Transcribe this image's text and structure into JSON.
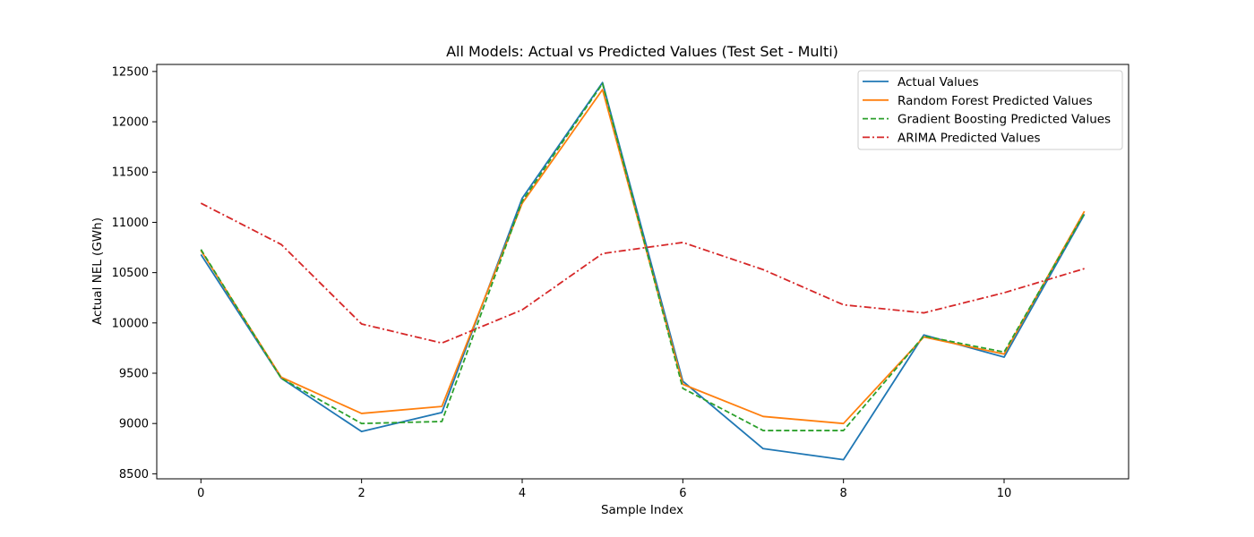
{
  "chart_data": {
    "type": "line",
    "title": "All Models: Actual vs Predicted Values (Test Set - Multi)",
    "xlabel": "Sample Index",
    "ylabel": "Actual NEL (GWh)",
    "x": [
      0,
      1,
      2,
      3,
      4,
      5,
      6,
      7,
      8,
      9,
      10,
      11
    ],
    "xlim": [
      -0.55,
      11.55
    ],
    "ylim": [
      8450,
      12570
    ],
    "xticks": [
      0,
      2,
      4,
      6,
      8,
      10
    ],
    "yticks": [
      8500,
      9000,
      9500,
      10000,
      10500,
      11000,
      11500,
      12000,
      12500
    ],
    "grid": false,
    "legend_position": "top-right",
    "series": [
      {
        "name": "Actual Values",
        "color": "#1f77b4",
        "style": "solid",
        "values": [
          10680,
          9450,
          8920,
          9110,
          11240,
          12390,
          9420,
          8750,
          8640,
          9880,
          9660,
          11080
        ]
      },
      {
        "name": "Random Forest Predicted Values",
        "color": "#ff7f0e",
        "style": "solid",
        "values": [
          10720,
          9460,
          9100,
          9170,
          11190,
          12320,
          9390,
          9070,
          9000,
          9860,
          9690,
          11110
        ]
      },
      {
        "name": "Gradient Boosting Predicted Values",
        "color": "#2ca02c",
        "style": "dashed",
        "values": [
          10730,
          9450,
          9000,
          9020,
          11210,
          12380,
          9350,
          8930,
          8930,
          9870,
          9710,
          11090
        ]
      },
      {
        "name": "ARIMA Predicted Values",
        "color": "#d62728",
        "style": "dashdot",
        "values": [
          11190,
          10780,
          9990,
          9800,
          10130,
          10690,
          10800,
          10530,
          10180,
          10100,
          10300,
          10540
        ]
      }
    ]
  }
}
